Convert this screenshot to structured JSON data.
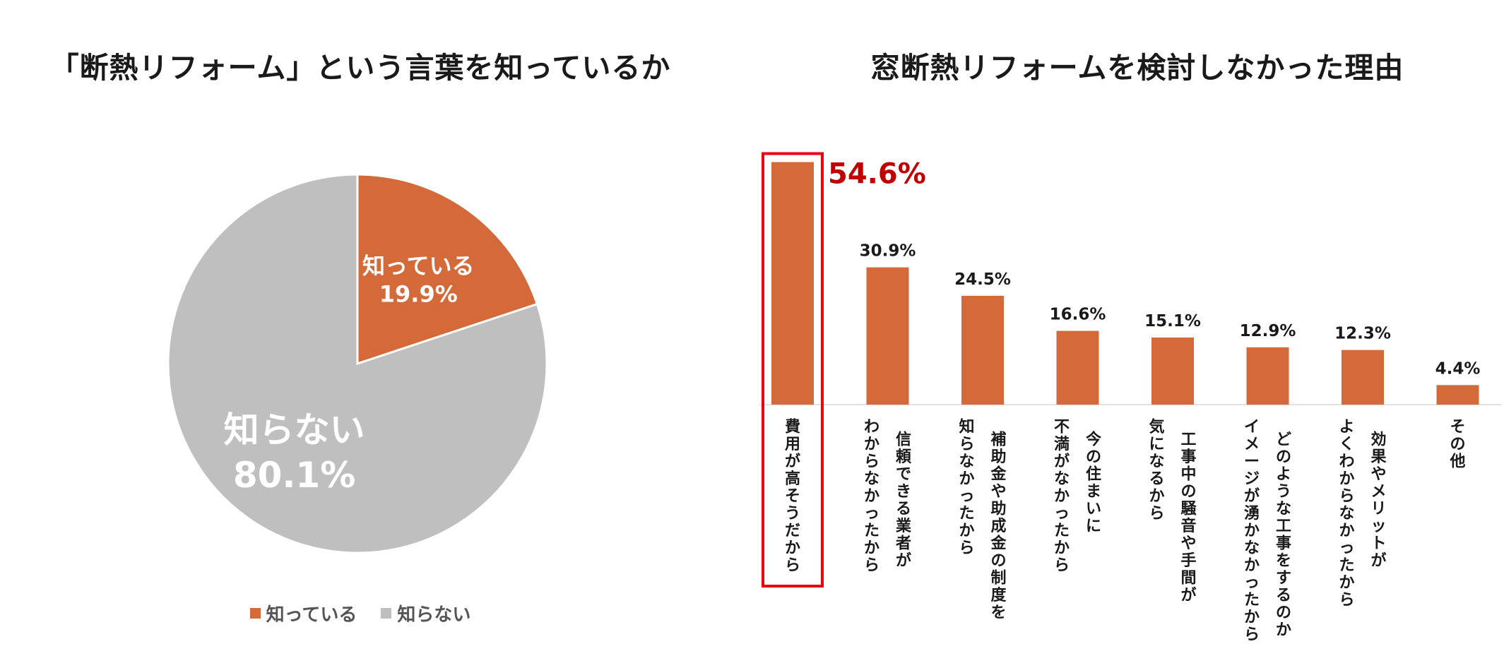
{
  "colors": {
    "orange": "#D46A39",
    "gray": "#BFBFBF",
    "highlight": "#E60012",
    "highlight_text": "#C00000"
  },
  "chart_data": [
    {
      "type": "pie",
      "title": "「断熱リフォーム」という言葉を知っているか",
      "slices": [
        {
          "label": "知っている",
          "value": 19.9,
          "value_label": "19.9%"
        },
        {
          "label": "知らない",
          "value": 80.1,
          "value_label": "80.1%"
        }
      ],
      "legend": [
        "知っている",
        "知らない"
      ],
      "legend_position": "bottom"
    },
    {
      "type": "bar",
      "title": "窓断熱リフォームを検討しなかった理由",
      "categories": [
        {
          "lines": [
            "費用が高そうだから"
          ]
        },
        {
          "lines": [
            "信頼できる業者が",
            "わからなかったから"
          ]
        },
        {
          "lines": [
            "補助金や助成金の制度を",
            "知らなかったから"
          ]
        },
        {
          "lines": [
            "今の住まいに",
            "不満がなかったから"
          ]
        },
        {
          "lines": [
            "工事中の騒音や手間が",
            "気になるから"
          ]
        },
        {
          "lines": [
            "どのような工事をするのか",
            "イメージが湧かなかったから"
          ]
        },
        {
          "lines": [
            "効果やメリットが",
            "よくわからなかったから"
          ]
        },
        {
          "lines": [
            "その他"
          ]
        }
      ],
      "values": [
        54.6,
        30.9,
        24.5,
        16.6,
        15.1,
        12.9,
        12.3,
        4.4
      ],
      "value_labels": [
        "54.6%",
        "30.9%",
        "24.5%",
        "16.6%",
        "15.1%",
        "12.9%",
        "12.3%",
        "4.4%"
      ],
      "ylim": [
        0,
        55
      ],
      "highlighted_index": 0,
      "grid": false
    }
  ]
}
